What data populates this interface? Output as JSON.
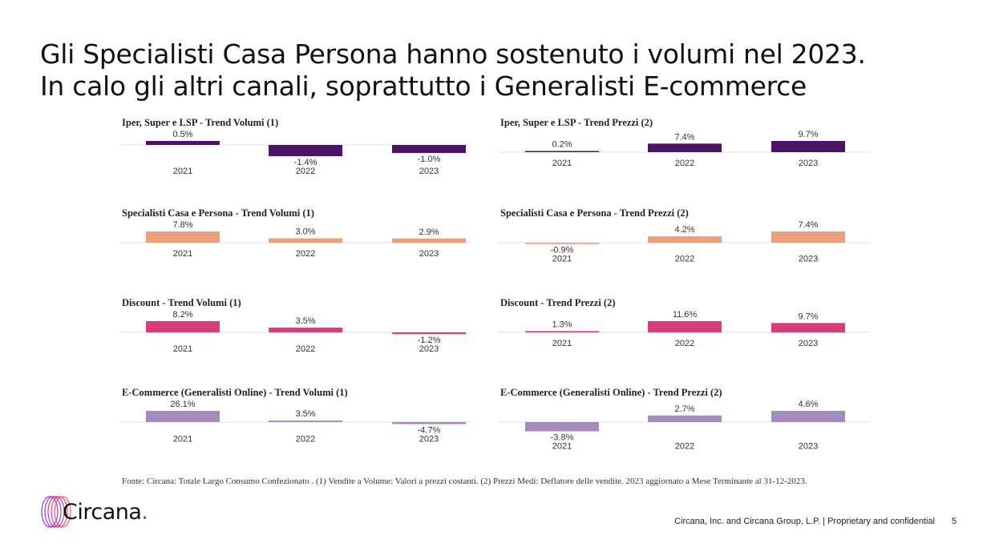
{
  "title": {
    "line1": "Gli Specialisti Casa Persona hanno sostenuto i volumi nel 2023.",
    "line2": "In calo gli altri canali, soprattutto i Generalisti E-commerce"
  },
  "chart_data": [
    {
      "type": "bar",
      "title": "Iper, Super e LSP - Trend Volumi (1)",
      "categories": [
        "2021",
        "2022",
        "2023"
      ],
      "values": [
        0.5,
        -1.4,
        -1.0
      ],
      "color": "#4b1466",
      "unit": "%"
    },
    {
      "type": "bar",
      "title": "Iper, Super e LSP - Trend Prezzi (2)",
      "categories": [
        "2021",
        "2022",
        "2023"
      ],
      "values": [
        0.2,
        7.4,
        9.7
      ],
      "color": "#4b1466",
      "unit": "%"
    },
    {
      "type": "bar",
      "title": "Specialisti Casa e Persona - Trend Volumi (1)",
      "categories": [
        "2021",
        "2022",
        "2023"
      ],
      "values": [
        7.8,
        3.0,
        2.9
      ],
      "color": "#ee9f7a",
      "unit": "%"
    },
    {
      "type": "bar",
      "title": "Specialisti Casa e Persona - Trend Prezzi (2)",
      "categories": [
        "2021",
        "2022",
        "2023"
      ],
      "values": [
        -0.9,
        4.2,
        7.4
      ],
      "color": "#ee9f7a",
      "unit": "%"
    },
    {
      "type": "bar",
      "title": "Discount - Trend Volumi (1)",
      "categories": [
        "2021",
        "2022",
        "2023"
      ],
      "values": [
        8.2,
        3.5,
        -1.2
      ],
      "color": "#d93d7a",
      "unit": "%"
    },
    {
      "type": "bar",
      "title": "Discount - Trend Prezzi (2)",
      "categories": [
        "2021",
        "2022",
        "2023"
      ],
      "values": [
        1.3,
        11.6,
        9.7
      ],
      "color": "#d93d7a",
      "unit": "%"
    },
    {
      "type": "bar",
      "title": "E-Commerce (Generalisti Online) - Trend Volumi (1)",
      "categories": [
        "2021",
        "2022",
        "2023"
      ],
      "values": [
        26.1,
        3.5,
        -4.7
      ],
      "color": "#a58bbd",
      "unit": "%"
    },
    {
      "type": "bar",
      "title": "E-Commerce (Generalisti Online) - Trend Prezzi (2)",
      "categories": [
        "2021",
        "2022",
        "2023"
      ],
      "values": [
        -3.8,
        2.7,
        4.6
      ],
      "color": "#a58bbd",
      "unit": "%"
    }
  ],
  "source": "Fonte: Circana: Totale Largo Consumo Confezionato . (1) Vendite a Volume: Valori a prezzi costanti. (2) Prezzi Medi: Deflatore delle vendite. 2023 aggiornato a Mese Terminante al 31-12-2023.",
  "logo": {
    "name": "Circana",
    "dot": "."
  },
  "footer": {
    "text": "Circana, Inc. and Circana Group, L.P. |  Proprietary and confidential",
    "page": "5"
  }
}
